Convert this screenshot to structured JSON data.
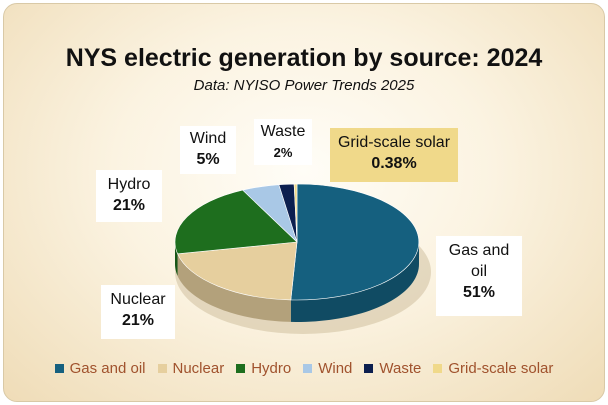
{
  "chart_data": {
    "type": "pie",
    "title": "NYS electric generation by source: 2024",
    "subtitle": "Data: NYISO Power Trends 2025",
    "slices": [
      {
        "name": "Gas and oil",
        "value": 51,
        "label": "51%",
        "color": "#15607f"
      },
      {
        "name": "Nuclear",
        "value": 21,
        "label": "21%",
        "color": "#e6cf9e"
      },
      {
        "name": "Hydro",
        "value": 21,
        "label": "21%",
        "color": "#1e6e1e"
      },
      {
        "name": "Wind",
        "value": 5,
        "label": "5%",
        "color": "#a9c8e6"
      },
      {
        "name": "Waste",
        "value": 2,
        "label": "2%",
        "color": "#0c1f4f"
      },
      {
        "name": "Grid-scale solar",
        "value": 0.38,
        "label": "0.38%",
        "color": "#f0d98a"
      }
    ],
    "legend_position": "bottom",
    "callouts": {
      "gas": {
        "name_lines": [
          "Gas and",
          "oil"
        ],
        "pct": "51%"
      },
      "nuclear": {
        "name": "Nuclear",
        "pct": "21%"
      },
      "hydro": {
        "name": "Hydro",
        "pct": "21%"
      },
      "wind": {
        "name": "Wind",
        "pct": "5%"
      },
      "waste": {
        "name": "Waste",
        "pct": "2%"
      },
      "solar": {
        "name": "Grid-scale solar",
        "pct": "0.38%"
      }
    }
  }
}
